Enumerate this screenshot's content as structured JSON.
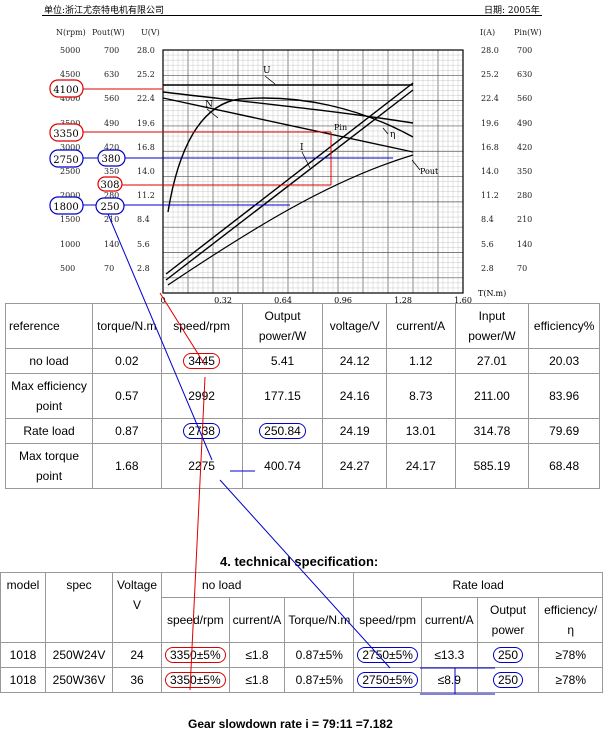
{
  "header": {
    "company": "单位:浙江尤奈特电机有限公司",
    "date": "日期: 2005年"
  },
  "chart": {
    "left_axis_titles": [
      "N(rpm)",
      "Pout(W)",
      "U(V)"
    ],
    "right_axis_titles": [
      "I(A)",
      "Pin(W)"
    ],
    "rpm_ticks": [
      "5000",
      "4500",
      "4000",
      "3500",
      "3000",
      "2500",
      "2000",
      "1500",
      "1000",
      "500"
    ],
    "pout_ticks": [
      "700",
      "630",
      "560",
      "490",
      "420",
      "350",
      "280",
      "210",
      "140",
      "70"
    ],
    "u_ticks": [
      "28.0",
      "25.2",
      "22.4",
      "19.6",
      "16.8",
      "14.0",
      "11.2",
      "8.4",
      "5.6",
      "2.8"
    ],
    "i_ticks": [
      "28.0",
      "25.2",
      "22.4",
      "19.6",
      "16.8",
      "14.0",
      "11.2",
      "8.4",
      "5.6",
      "2.8"
    ],
    "pin_ticks": [
      "700",
      "630",
      "560",
      "490",
      "420",
      "350",
      "280",
      "210",
      "140",
      "70"
    ],
    "x_ticks": [
      "0",
      "0.32",
      "0.64",
      "0.96",
      "1.28",
      "1.60"
    ],
    "x_title": "T(N.m)",
    "curve_labels": {
      "u": "U",
      "n": "N",
      "eta": "η",
      "pin": "Pin",
      "i": "I",
      "pout": "Pout"
    },
    "annotations": {
      "rpm_4100": "4100",
      "rpm_3350": "3350",
      "rpm_2750": "2750",
      "rpm_1800": "1800",
      "pout_380": "380",
      "pout_308": "308",
      "pout_250": "250"
    }
  },
  "performance": {
    "headers": [
      "reference",
      "torque/N.m",
      "speed/rpm",
      "Output power/W",
      "voltage/V",
      "current/A",
      "Input power/W",
      "efficiency%"
    ],
    "rows": [
      [
        "no load",
        "0.02",
        "3445",
        "5.41",
        "24.12",
        "1.12",
        "27.01",
        "20.03"
      ],
      [
        "Max efficiency point",
        "0.57",
        "2992",
        "177.15",
        "24.16",
        "8.73",
        "211.00",
        "83.96"
      ],
      [
        "Rate load",
        "0.87",
        "2738",
        "250.84",
        "24.19",
        "13.01",
        "314.78",
        "79.69"
      ],
      [
        "Max torque point",
        "1.68",
        "2275",
        "400.74",
        "24.27",
        "24.17",
        "585.19",
        "68.48"
      ]
    ]
  },
  "spec": {
    "title": "4. technical specification:",
    "h_model": "model",
    "h_spec": "spec",
    "h_voltage": "Voltage V",
    "h_noload": "no load",
    "h_rateload": "Rate load",
    "sub": [
      "speed/rpm",
      "current/A",
      "Torque/N.m",
      "speed/rpm",
      "current/A",
      "Output power",
      "efficiency/η"
    ],
    "rows": [
      [
        "1018",
        "250W24V",
        "24",
        "3350±5%",
        "≤1.8",
        "0.87±5%",
        "2750±5%",
        "≤13.3",
        "250",
        "≥78%"
      ],
      [
        "1018",
        "250W36V",
        "36",
        "3350±5%",
        "≤1.8",
        "0.87±5%",
        "2750±5%",
        "≤8.9",
        "250",
        "≥78%"
      ]
    ]
  },
  "footer": {
    "gear": "Gear slowdown rate i = 79:11 =7.182"
  }
}
